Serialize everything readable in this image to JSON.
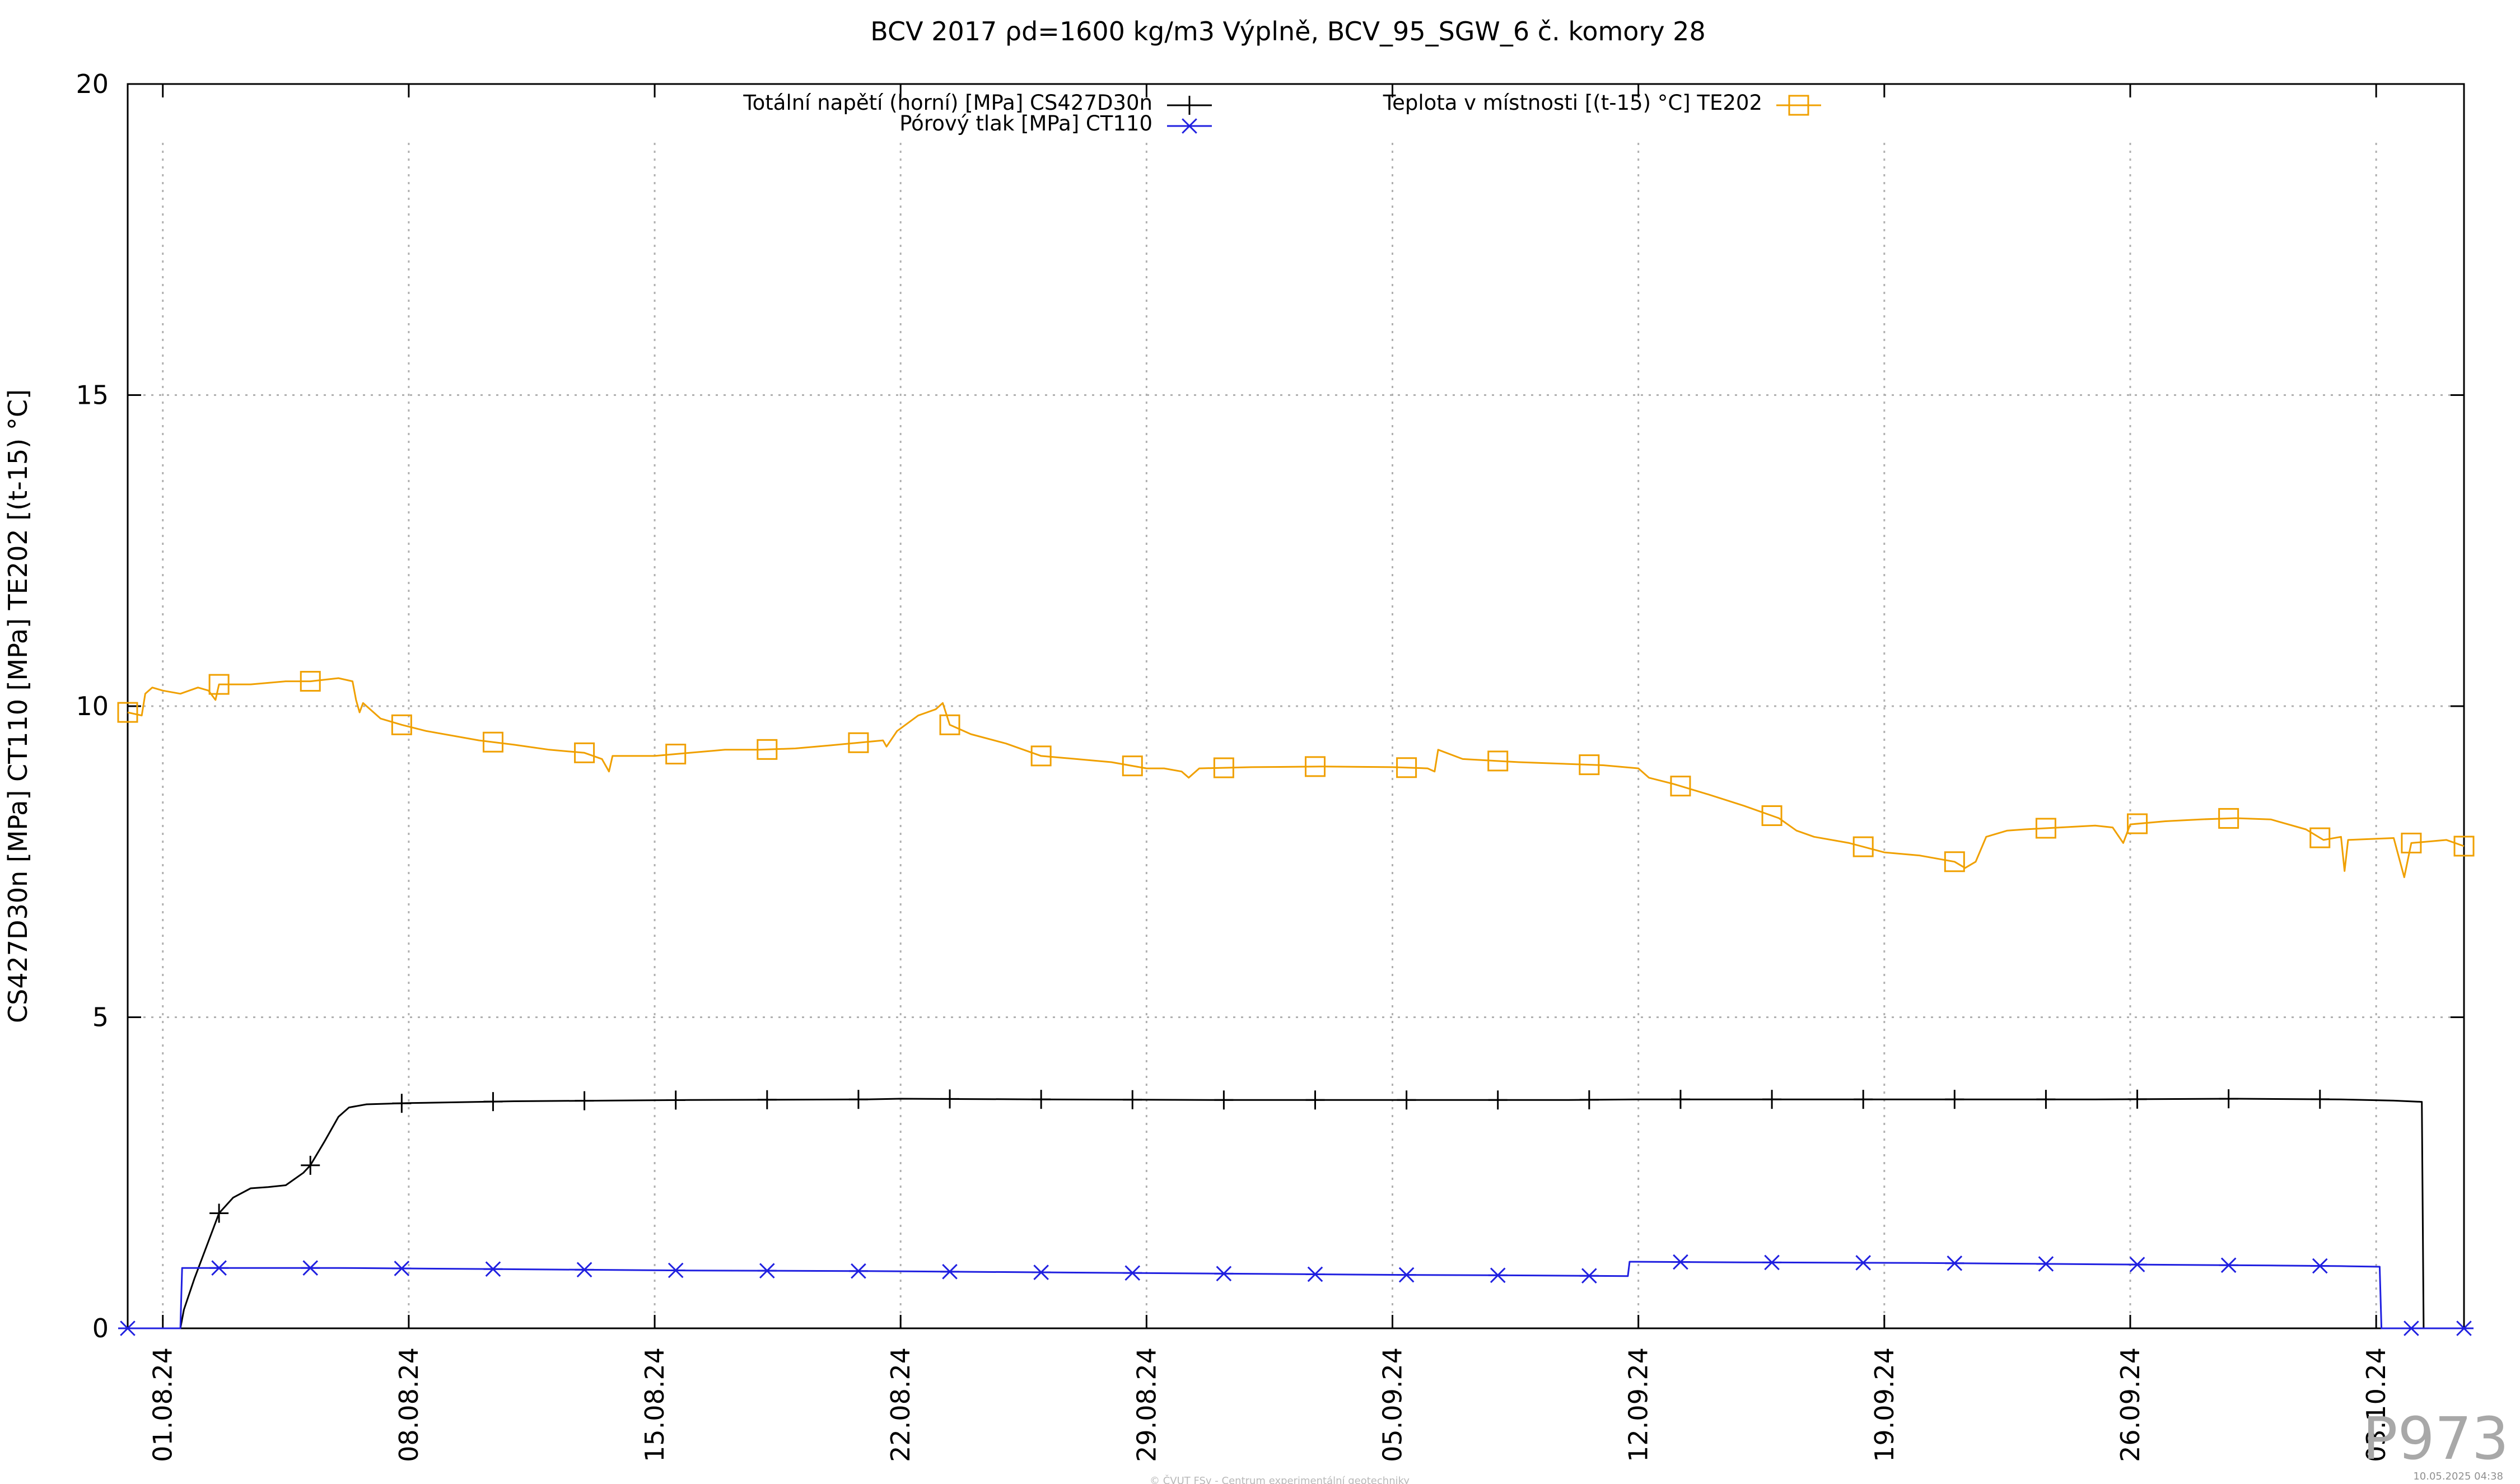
{
  "chart_data": {
    "type": "line",
    "title": "BCV 2017 ρd=1600 kg/m3 Výplně, BCV_95_SGW_6 č. komory 28",
    "ylabel": "CS427D30n [MPa] CT110 [MPa] TE202 [(t-15) °C]",
    "xlabel": "",
    "ylim": [
      0,
      20
    ],
    "yticks": [
      0,
      5,
      10,
      15,
      20
    ],
    "xlim": [
      -1,
      65.5
    ],
    "x_unit": "days from 01.08.24",
    "xticks": [
      {
        "label": "01.08.24",
        "day": 0
      },
      {
        "label": "08.08.24",
        "day": 7
      },
      {
        "label": "15.08.24",
        "day": 14
      },
      {
        "label": "22.08.24",
        "day": 21
      },
      {
        "label": "29.08.24",
        "day": 28
      },
      {
        "label": "05.09.24",
        "day": 35
      },
      {
        "label": "12.09.24",
        "day": 42
      },
      {
        "label": "19.09.24",
        "day": 49
      },
      {
        "label": "26.09.24",
        "day": 56
      },
      {
        "label": "03.10.24",
        "day": 63
      }
    ],
    "grid": true,
    "legend_position": "top",
    "series": [
      {
        "name": "Totální napětí (horní) [MPa] CS427D30n",
        "color": "#000000",
        "marker": "plus",
        "points": [
          [
            -1,
            0
          ],
          [
            0.5,
            0
          ],
          [
            0.6,
            0.3
          ],
          [
            0.9,
            0.8
          ],
          [
            1.3,
            1.4
          ],
          [
            1.6,
            1.85
          ],
          [
            2.0,
            2.1
          ],
          [
            2.5,
            2.25
          ],
          [
            3.0,
            2.27
          ],
          [
            3.5,
            2.3
          ],
          [
            4.0,
            2.5
          ],
          [
            4.2,
            2.62
          ],
          [
            4.6,
            3.0
          ],
          [
            5.0,
            3.4
          ],
          [
            5.3,
            3.55
          ],
          [
            5.8,
            3.6
          ],
          [
            7.0,
            3.62
          ],
          [
            10,
            3.65
          ],
          [
            15,
            3.67
          ],
          [
            20,
            3.68
          ],
          [
            21,
            3.69
          ],
          [
            25,
            3.68
          ],
          [
            30,
            3.67
          ],
          [
            35,
            3.67
          ],
          [
            40,
            3.67
          ],
          [
            42,
            3.68
          ],
          [
            45,
            3.68
          ],
          [
            50,
            3.68
          ],
          [
            55,
            3.68
          ],
          [
            59,
            3.69
          ],
          [
            62,
            3.68
          ],
          [
            63.5,
            3.66
          ],
          [
            64.3,
            3.64
          ],
          [
            64.35,
            0
          ],
          [
            65.5,
            0
          ]
        ],
        "markers": [
          1.6,
          4.2,
          6.8,
          9.4,
          12,
          14.6,
          17.2,
          19.8,
          22.4,
          25,
          27.6,
          30.2,
          32.8,
          35.4,
          38,
          40.6,
          43.2,
          45.8,
          48.4,
          51,
          53.6,
          56.2,
          58.8,
          61.4
        ]
      },
      {
        "name": "Pórový tlak [MPa] CT110",
        "color": "#2020e0",
        "marker": "asterisk",
        "points": [
          [
            -1,
            0
          ],
          [
            0.5,
            0
          ],
          [
            0.55,
            0.97
          ],
          [
            5,
            0.97
          ],
          [
            10,
            0.95
          ],
          [
            15,
            0.93
          ],
          [
            20,
            0.92
          ],
          [
            25,
            0.9
          ],
          [
            30,
            0.88
          ],
          [
            35,
            0.86
          ],
          [
            39,
            0.85
          ],
          [
            41.7,
            0.84
          ],
          [
            41.75,
            1.07
          ],
          [
            45,
            1.06
          ],
          [
            50,
            1.05
          ],
          [
            55,
            1.03
          ],
          [
            60,
            1.01
          ],
          [
            62,
            1.0
          ],
          [
            63.1,
            0.99
          ],
          [
            63.15,
            0
          ],
          [
            65.5,
            0
          ]
        ],
        "markers": [
          -1,
          1.6,
          4.2,
          6.8,
          9.4,
          12,
          14.6,
          17.2,
          19.8,
          22.4,
          25,
          27.6,
          30.2,
          32.8,
          35.4,
          38,
          40.6,
          43.2,
          45.8,
          48.4,
          51,
          53.6,
          56.2,
          58.8,
          61.4,
          64,
          65.5
        ]
      },
      {
        "name": "Teplota v místnosti [(t-15) °C] TE202",
        "color": "#f0a000",
        "marker": "square",
        "points": [
          [
            -1,
            9.9
          ],
          [
            -0.6,
            9.85
          ],
          [
            -0.5,
            10.2
          ],
          [
            -0.3,
            10.3
          ],
          [
            0,
            10.25
          ],
          [
            0.5,
            10.2
          ],
          [
            1.0,
            10.3
          ],
          [
            1.3,
            10.25
          ],
          [
            1.5,
            10.1
          ],
          [
            1.6,
            10.35
          ],
          [
            2.5,
            10.35
          ],
          [
            3.5,
            10.4
          ],
          [
            4.2,
            10.4
          ],
          [
            5,
            10.45
          ],
          [
            5.4,
            10.4
          ],
          [
            5.5,
            10.1
          ],
          [
            5.6,
            9.9
          ],
          [
            5.7,
            10.05
          ],
          [
            6.2,
            9.8
          ],
          [
            6.8,
            9.7
          ],
          [
            7.5,
            9.6
          ],
          [
            9,
            9.45
          ],
          [
            10,
            9.38
          ],
          [
            11,
            9.3
          ],
          [
            12,
            9.25
          ],
          [
            12.5,
            9.15
          ],
          [
            12.7,
            8.95
          ],
          [
            12.8,
            9.2
          ],
          [
            14,
            9.2
          ],
          [
            15,
            9.25
          ],
          [
            16,
            9.3
          ],
          [
            17,
            9.3
          ],
          [
            18,
            9.32
          ],
          [
            19,
            9.37
          ],
          [
            20.5,
            9.45
          ],
          [
            20.6,
            9.35
          ],
          [
            20.9,
            9.6
          ],
          [
            21.5,
            9.85
          ],
          [
            22,
            9.95
          ],
          [
            22.2,
            10.05
          ],
          [
            22.4,
            9.7
          ],
          [
            23,
            9.55
          ],
          [
            24,
            9.4
          ],
          [
            25,
            9.2
          ],
          [
            26,
            9.15
          ],
          [
            27,
            9.1
          ],
          [
            28,
            9.0
          ],
          [
            28.5,
            9.0
          ],
          [
            29,
            8.95
          ],
          [
            29.2,
            8.85
          ],
          [
            29.5,
            9.0
          ],
          [
            31,
            9.02
          ],
          [
            33,
            9.03
          ],
          [
            35,
            9.02
          ],
          [
            36,
            9.0
          ],
          [
            36.2,
            8.95
          ],
          [
            36.3,
            9.3
          ],
          [
            37,
            9.15
          ],
          [
            38.6,
            9.1
          ],
          [
            41,
            9.05
          ],
          [
            42,
            9.0
          ],
          [
            42.3,
            8.85
          ],
          [
            43,
            8.75
          ],
          [
            44,
            8.58
          ],
          [
            45,
            8.4
          ],
          [
            46,
            8.2
          ],
          [
            46.5,
            8.0
          ],
          [
            47,
            7.9
          ],
          [
            48,
            7.8
          ],
          [
            49,
            7.65
          ],
          [
            50,
            7.6
          ],
          [
            51,
            7.5
          ],
          [
            51.3,
            7.4
          ],
          [
            51.6,
            7.5
          ],
          [
            51.9,
            7.9
          ],
          [
            52.5,
            8.0
          ],
          [
            53,
            8.02
          ],
          [
            54,
            8.05
          ],
          [
            55,
            8.08
          ],
          [
            55.5,
            8.05
          ],
          [
            55.8,
            7.8
          ],
          [
            56,
            8.1
          ],
          [
            57,
            8.15
          ],
          [
            58,
            8.18
          ],
          [
            59,
            8.2
          ],
          [
            60,
            8.18
          ],
          [
            61,
            8.02
          ],
          [
            61.5,
            7.85
          ],
          [
            62,
            7.9
          ],
          [
            62.1,
            7.35
          ],
          [
            62.2,
            7.85
          ],
          [
            63.5,
            7.88
          ],
          [
            63.8,
            7.25
          ],
          [
            64,
            7.8
          ],
          [
            65,
            7.85
          ],
          [
            65.5,
            7.75
          ]
        ],
        "markers": [
          -1,
          1.6,
          4.2,
          6.8,
          9.4,
          12,
          14.6,
          17.2,
          19.8,
          22.4,
          25,
          27.6,
          30.2,
          32.8,
          35.4,
          38,
          40.6,
          43.2,
          45.8,
          48.4,
          51,
          53.6,
          56.2,
          58.8,
          61.4,
          64,
          65.5
        ]
      }
    ]
  },
  "watermark": "P973",
  "footer_center": "© ČVUT FSv - Centrum experimentální geotechniky",
  "footer_right": "10.05.2025 04:38"
}
